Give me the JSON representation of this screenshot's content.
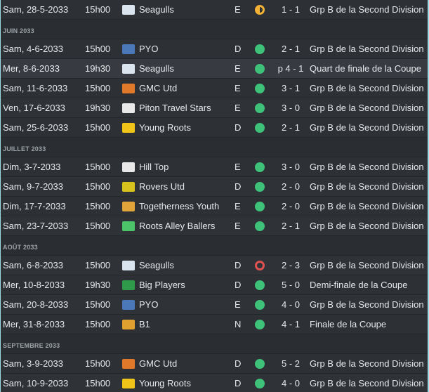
{
  "rows": [
    {
      "kind": "match",
      "date": "Sam, 28-5-2033",
      "time": "15h00",
      "badge": "seagull-badge-icon",
      "badge_color": "#d9e4ee",
      "opponent": "Seagulls",
      "venue": "E",
      "result": "draw",
      "score": "1 - 1",
      "competition": "Grp B de la Second Division"
    },
    {
      "kind": "month",
      "label": "JUIN 2033"
    },
    {
      "kind": "match",
      "date": "Sam, 4-6-2033",
      "time": "15h00",
      "badge": "pyo-crest-icon",
      "badge_color": "#4a78b8",
      "opponent": "PYO",
      "venue": "D",
      "result": "win",
      "score": "2 - 1",
      "competition": "Grp B de la Second Division"
    },
    {
      "kind": "match",
      "date": "Mer, 8-6-2033",
      "time": "19h30",
      "badge": "seagull-badge-icon",
      "badge_color": "#d9e4ee",
      "opponent": "Seagulls",
      "venue": "E",
      "result": "win",
      "score": "p 4 - 1",
      "competition": "Quart de finale de la Coupe",
      "highlight": true
    },
    {
      "kind": "match",
      "date": "Sam, 11-6-2033",
      "time": "15h00",
      "badge": "gmc-crest-icon",
      "badge_color": "#e07a2a",
      "opponent": "GMC Utd",
      "venue": "E",
      "result": "win",
      "score": "3 - 1",
      "competition": "Grp B de la Second Division"
    },
    {
      "kind": "match",
      "date": "Ven, 17-6-2033",
      "time": "19h30",
      "badge": "piton-crest-icon",
      "badge_color": "#e9e9e9",
      "opponent": "Piton Travel Stars",
      "venue": "E",
      "result": "win",
      "score": "3 - 0",
      "competition": "Grp B de la Second Division"
    },
    {
      "kind": "match",
      "date": "Sam, 25-6-2033",
      "time": "15h00",
      "badge": "young-roots-badge-icon",
      "badge_color": "#f0c419",
      "opponent": "Young Roots",
      "venue": "D",
      "result": "win",
      "score": "2 - 1",
      "competition": "Grp B de la Second Division"
    },
    {
      "kind": "month",
      "label": "JUILLET 2033"
    },
    {
      "kind": "match",
      "date": "Dim, 3-7-2033",
      "time": "15h00",
      "badge": "hill-top-crest-icon",
      "badge_color": "#e8e8e8",
      "opponent": "Hill Top",
      "venue": "E",
      "result": "win",
      "score": "3 - 0",
      "competition": "Grp B de la Second Division"
    },
    {
      "kind": "match",
      "date": "Sam, 9-7-2033",
      "time": "15h00",
      "badge": "rovers-crest-icon",
      "badge_color": "#d8c21e",
      "opponent": "Rovers Utd",
      "venue": "D",
      "result": "win",
      "score": "2 - 0",
      "competition": "Grp B de la Second Division"
    },
    {
      "kind": "match",
      "date": "Dim, 17-7-2033",
      "time": "15h00",
      "badge": "togetherness-crest-icon",
      "badge_color": "#e0a43a",
      "opponent": "Togetherness Youth",
      "venue": "E",
      "result": "win",
      "score": "2 - 0",
      "competition": "Grp B de la Second Division"
    },
    {
      "kind": "match",
      "date": "Sam, 23-7-2033",
      "time": "15h00",
      "badge": "alien-badge-icon",
      "badge_color": "#4cc46a",
      "opponent": "Roots Alley Ballers",
      "venue": "E",
      "result": "win",
      "score": "2 - 1",
      "competition": "Grp B de la Second Division"
    },
    {
      "kind": "month",
      "label": "AOÛT 2033"
    },
    {
      "kind": "match",
      "date": "Sam, 6-8-2033",
      "time": "15h00",
      "badge": "seagull-badge-icon",
      "badge_color": "#d9e4ee",
      "opponent": "Seagulls",
      "venue": "D",
      "result": "loss",
      "score": "2 - 3",
      "competition": "Grp B de la Second Division"
    },
    {
      "kind": "match",
      "date": "Mer, 10-8-2033",
      "time": "19h30",
      "badge": "big-players-crest-icon",
      "badge_color": "#2e9a4a",
      "opponent": "Big Players",
      "venue": "D",
      "result": "win",
      "score": "5 - 0",
      "competition": "Demi-finale de la Coupe"
    },
    {
      "kind": "match",
      "date": "Sam, 20-8-2033",
      "time": "15h00",
      "badge": "pyo-crest-icon",
      "badge_color": "#4a78b8",
      "opponent": "PYO",
      "venue": "E",
      "result": "win",
      "score": "4 - 0",
      "competition": "Grp B de la Second Division"
    },
    {
      "kind": "match",
      "date": "Mer, 31-8-2033",
      "time": "15h00",
      "badge": "b1-crest-icon",
      "badge_color": "#e0a030",
      "opponent": "B1",
      "venue": "N",
      "result": "win",
      "score": "4 - 1",
      "competition": "Finale de la Coupe"
    },
    {
      "kind": "month",
      "label": "SEPTEMBRE 2033"
    },
    {
      "kind": "match",
      "date": "Sam, 3-9-2033",
      "time": "15h00",
      "badge": "gmc-crest-icon",
      "badge_color": "#e07a2a",
      "opponent": "GMC Utd",
      "venue": "D",
      "result": "win",
      "score": "5 - 2",
      "competition": "Grp B de la Second Division"
    },
    {
      "kind": "match",
      "date": "Sam, 10-9-2033",
      "time": "15h00",
      "badge": "young-roots-badge-icon",
      "badge_color": "#f0c419",
      "opponent": "Young Roots",
      "venue": "D",
      "result": "win",
      "score": "4 - 0",
      "competition": "Grp B de la Second Division"
    }
  ]
}
